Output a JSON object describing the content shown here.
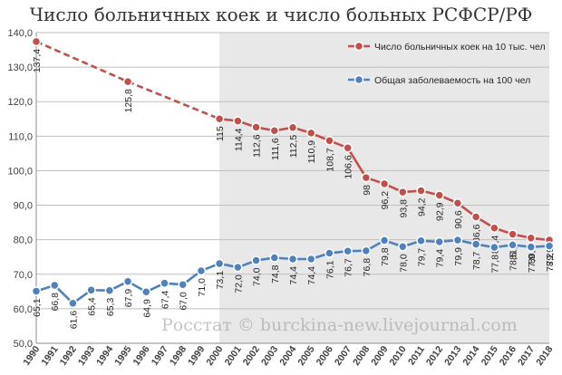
{
  "title": "Число больничных коек и число больных РСФСР/РФ",
  "watermark": "Росстат © burckina-new.livejournal.com",
  "chart_data": {
    "type": "line",
    "title": "Число больничных коек и число больных РСФСР/РФ",
    "ylim": [
      50,
      140
    ],
    "yticks": [
      "50,0",
      "60,0",
      "70,0",
      "80,0",
      "90,0",
      "100,0",
      "110,0",
      "120,0",
      "130,0",
      "140,0"
    ],
    "grid": true,
    "legend_position": "top-right",
    "shaded_from": "2000",
    "x": [
      "1990",
      "1991",
      "1992",
      "1993",
      "1994",
      "1995",
      "1996",
      "1997",
      "1998",
      "1999",
      "2000",
      "2001",
      "2002",
      "2003",
      "2004",
      "2005",
      "2006",
      "2007",
      "2008",
      "2009",
      "2010",
      "2011",
      "2012",
      "2013",
      "2014",
      "2015",
      "2016",
      "2017",
      "2018"
    ],
    "series": [
      {
        "name": "Число больничных коек  на 10 тыс. чел",
        "color": "#c0504d",
        "dashed_until": "2000",
        "points": [
          {
            "x": "1990",
            "y": 137.4,
            "label": "137,4"
          },
          {
            "x": "1995",
            "y": 125.8,
            "label": "125,8"
          },
          {
            "x": "2000",
            "y": 115.0,
            "label": "115"
          },
          {
            "x": "2001",
            "y": 114.4,
            "label": "114,4"
          },
          {
            "x": "2002",
            "y": 112.6,
            "label": "112,6"
          },
          {
            "x": "2003",
            "y": 111.6,
            "label": "111,6"
          },
          {
            "x": "2004",
            "y": 112.5,
            "label": "112,5"
          },
          {
            "x": "2005",
            "y": 110.9,
            "label": "110,9"
          },
          {
            "x": "2006",
            "y": 108.7,
            "label": "108,7"
          },
          {
            "x": "2007",
            "y": 106.6,
            "label": "106,6"
          },
          {
            "x": "2008",
            "y": 98.0,
            "label": "98"
          },
          {
            "x": "2009",
            "y": 96.2,
            "label": "96,2"
          },
          {
            "x": "2010",
            "y": 93.8,
            "label": "93,8"
          },
          {
            "x": "2011",
            "y": 94.2,
            "label": "94,2"
          },
          {
            "x": "2012",
            "y": 92.9,
            "label": "92,9"
          },
          {
            "x": "2013",
            "y": 90.6,
            "label": "90,6"
          },
          {
            "x": "2014",
            "y": 86.6,
            "label": "86,6"
          },
          {
            "x": "2015",
            "y": 83.4,
            "label": "83,4"
          },
          {
            "x": "2016",
            "y": 81.6,
            "label": "81,6"
          },
          {
            "x": "2017",
            "y": 80.5,
            "label": "80,5"
          },
          {
            "x": "2018",
            "y": 79.9,
            "label": "79,9"
          }
        ]
      },
      {
        "name": "Общая заболеваемость на 100 чел",
        "color": "#4f81bd",
        "points": [
          {
            "x": "1990",
            "y": 65.1,
            "label": "65,1"
          },
          {
            "x": "1991",
            "y": 66.8,
            "label": "66,8"
          },
          {
            "x": "1992",
            "y": 61.6,
            "label": "61,6"
          },
          {
            "x": "1993",
            "y": 65.4,
            "label": "65,4"
          },
          {
            "x": "1994",
            "y": 65.3,
            "label": "65,3"
          },
          {
            "x": "1995",
            "y": 67.9,
            "label": "67,9"
          },
          {
            "x": "1996",
            "y": 64.9,
            "label": "64,9"
          },
          {
            "x": "1997",
            "y": 67.4,
            "label": "67,4"
          },
          {
            "x": "1998",
            "y": 67.0,
            "label": "67,0"
          },
          {
            "x": "1999",
            "y": 71.0,
            "label": "71,0"
          },
          {
            "x": "2000",
            "y": 73.1,
            "label": "73,1"
          },
          {
            "x": "2001",
            "y": 72.0,
            "label": "72,0"
          },
          {
            "x": "2002",
            "y": 74.0,
            "label": "74,0"
          },
          {
            "x": "2003",
            "y": 74.8,
            "label": "74,8"
          },
          {
            "x": "2004",
            "y": 74.4,
            "label": "74,4"
          },
          {
            "x": "2005",
            "y": 74.4,
            "label": "74,4"
          },
          {
            "x": "2006",
            "y": 76.1,
            "label": "76,1"
          },
          {
            "x": "2007",
            "y": 76.7,
            "label": "76,7"
          },
          {
            "x": "2008",
            "y": 76.8,
            "label": "76,8"
          },
          {
            "x": "2009",
            "y": 79.8,
            "label": "79,8"
          },
          {
            "x": "2010",
            "y": 78.0,
            "label": "78,0"
          },
          {
            "x": "2011",
            "y": 79.7,
            "label": "79,7"
          },
          {
            "x": "2012",
            "y": 79.4,
            "label": "79,4"
          },
          {
            "x": "2013",
            "y": 79.9,
            "label": "79,9"
          },
          {
            "x": "2014",
            "y": 78.7,
            "label": "78,7"
          },
          {
            "x": "2015",
            "y": 77.8,
            "label": "77,8"
          },
          {
            "x": "2016",
            "y": 78.5,
            "label": "78,5"
          },
          {
            "x": "2017",
            "y": 77.9,
            "label": "77,9"
          },
          {
            "x": "2018",
            "y": 78.2,
            "label": "78,2"
          }
        ]
      }
    ]
  }
}
